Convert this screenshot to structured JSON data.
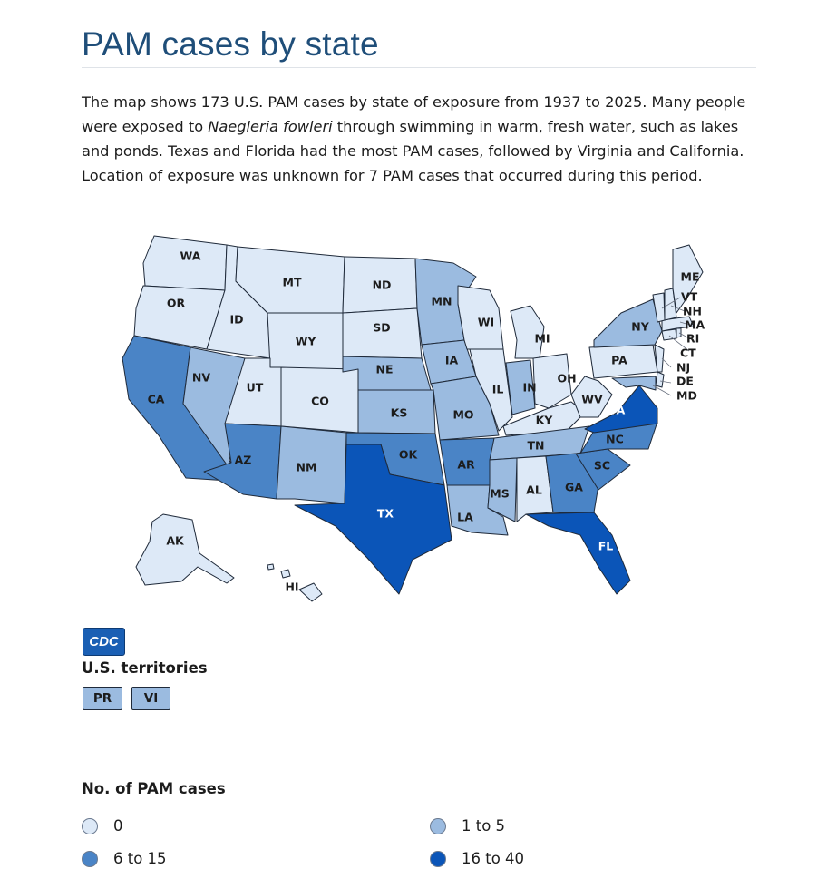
{
  "page": {
    "title": "PAM cases by state",
    "description_pre": "The map shows 173 U.S. PAM cases by state of exposure from 1937 to 2025. Many people were exposed to ",
    "description_italic": "Naegleria fowleri",
    "description_post": " through swimming in warm, fresh water, such as lakes and ponds. Texas and Florida had the most PAM cases, followed by Virginia and California. Location of exposure was unknown for 7 PAM cases that occurred during this period."
  },
  "logo": {
    "text": "CDC",
    "icon": "cdc-logo"
  },
  "territories": {
    "title": "U.S. territories",
    "items": [
      {
        "code": "PR",
        "bin": "1to5"
      },
      {
        "code": "VI",
        "bin": "1to5"
      }
    ]
  },
  "legend": {
    "title": "No. of PAM cases",
    "items": [
      {
        "label": "0",
        "bin": "0"
      },
      {
        "label": "1 to 5",
        "bin": "1to5"
      },
      {
        "label": "6 to 15",
        "bin": "6to15"
      },
      {
        "label": "16 to 40",
        "bin": "16to40"
      }
    ]
  },
  "colors": {
    "0": "#dde9f7",
    "1to5": "#9bbbe0",
    "6to15": "#4a84c6",
    "16to40": "#0b55b8"
  },
  "states": {
    "WA": "0",
    "OR": "0",
    "ID": "0",
    "MT": "0",
    "WY": "0",
    "ND": "0",
    "SD": "0",
    "MN": "1to5",
    "NE": "1to5",
    "IA": "1to5",
    "KS": "1to5",
    "MO": "1to5",
    "WI": "0",
    "MI": "0",
    "IL": "0",
    "IN": "1to5",
    "OH": "0",
    "KY": "0",
    "TN": "1to5",
    "MS": "1to5",
    "AL": "0",
    "LA": "1to5",
    "AR": "6to15",
    "OK": "6to15",
    "TX": "16to40",
    "NM": "1to5",
    "AZ": "6to15",
    "UT": "0",
    "CO": "0",
    "NV": "1to5",
    "CA": "6to15",
    "FL": "16to40",
    "GA": "6to15",
    "SC": "6to15",
    "NC": "6to15",
    "VA": "16to40",
    "WV": "0",
    "PA": "0",
    "NY": "1to5",
    "NJ": "0",
    "DE": "0",
    "MD": "1to5",
    "CT": "0",
    "RI": "0",
    "MA": "0",
    "NH": "0",
    "VT": "0",
    "ME": "0",
    "AK": "0",
    "HI": "0"
  },
  "labels": {
    "WA": "WA",
    "OR": "OR",
    "ID": "ID",
    "MT": "MT",
    "WY": "WY",
    "ND": "ND",
    "SD": "SD",
    "MN": "MN",
    "NE": "NE",
    "IA": "IA",
    "KS": "KS",
    "MO": "MO",
    "WI": "WI",
    "MI": "MI",
    "IL": "IL",
    "IN": "IN",
    "OH": "OH",
    "KY": "KY",
    "TN": "TN",
    "MS": "MS",
    "AL": "AL",
    "LA": "LA",
    "AR": "AR",
    "OK": "OK",
    "TX": "TX",
    "NM": "NM",
    "AZ": "AZ",
    "UT": "UT",
    "CO": "CO",
    "NV": "NV",
    "CA": "CA",
    "FL": "FL",
    "GA": "GA",
    "SC": "SC",
    "NC": "NC",
    "VA": "VA",
    "WV": "WV",
    "PA": "PA",
    "NY": "NY",
    "NJ": "NJ",
    "DE": "DE",
    "MD": "MD",
    "CT": "CT",
    "RI": "RI",
    "MA": "MA",
    "NH": "NH",
    "VT": "VT",
    "ME": "ME",
    "AK": "AK",
    "HI": "HI"
  }
}
